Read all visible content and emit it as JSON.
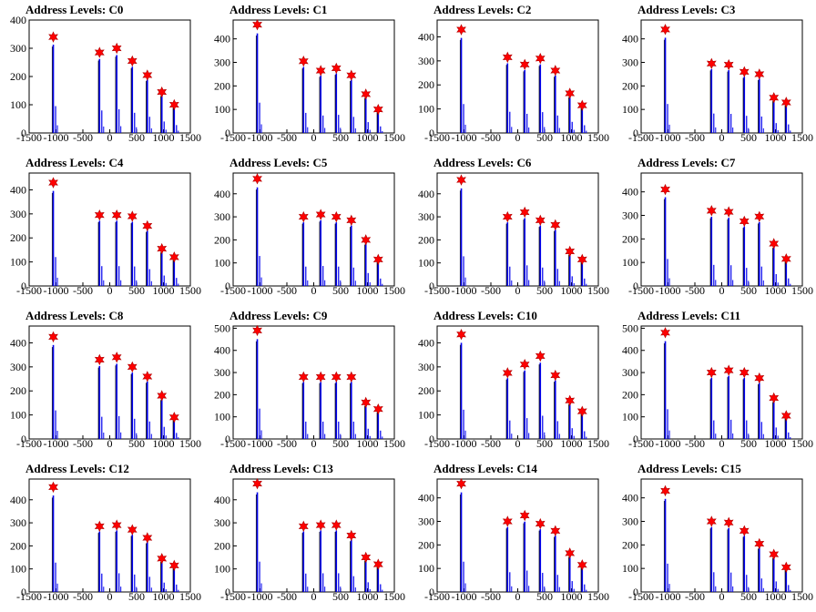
{
  "figure": {
    "series_colors": {
      "histogram": "#0000ee",
      "overlay": "#000000",
      "marker": "#ff0000"
    }
  },
  "chart_data": [
    {
      "type": "bar",
      "title": "Address Levels: C0",
      "xlabel": "",
      "ylabel": "",
      "xlim": [
        -1500,
        1500
      ],
      "ylim": [
        0,
        400
      ],
      "xticks": [
        "-1500",
        "-1000",
        "-500",
        "0",
        "500",
        "1000",
        "1500"
      ],
      "yticks": [
        "0",
        "100",
        "200",
        "300",
        "400"
      ],
      "peaks": [
        {
          "x": -1050,
          "y": 340
        },
        {
          "x": -190,
          "y": 285
        },
        {
          "x": 130,
          "y": 300
        },
        {
          "x": 420,
          "y": 255
        },
        {
          "x": 700,
          "y": 205
        },
        {
          "x": 970,
          "y": 145
        },
        {
          "x": 1200,
          "y": 100
        }
      ]
    },
    {
      "type": "bar",
      "title": "Address Levels: C1",
      "xlabel": "",
      "ylabel": "",
      "xlim": [
        -1500,
        1500
      ],
      "ylim": [
        0,
        480
      ],
      "xticks": [
        "-1500",
        "-1000",
        "-500",
        "0",
        "500",
        "1000",
        "1500"
      ],
      "yticks": [
        "0",
        "100",
        "200",
        "300",
        "400"
      ],
      "peaks": [
        {
          "x": -1050,
          "y": 460
        },
        {
          "x": -190,
          "y": 305
        },
        {
          "x": 130,
          "y": 265
        },
        {
          "x": 420,
          "y": 275
        },
        {
          "x": 700,
          "y": 245
        },
        {
          "x": 970,
          "y": 165
        },
        {
          "x": 1200,
          "y": 100
        }
      ]
    },
    {
      "type": "bar",
      "title": "Address Levels: C2",
      "xlabel": "",
      "ylabel": "",
      "xlim": [
        -1500,
        1500
      ],
      "ylim": [
        0,
        470
      ],
      "xticks": [
        "-1500",
        "-1000",
        "-500",
        "0",
        "500",
        "1000",
        "1500"
      ],
      "yticks": [
        "0",
        "100",
        "200",
        "300",
        "400"
      ],
      "peaks": [
        {
          "x": -1050,
          "y": 430
        },
        {
          "x": -190,
          "y": 315
        },
        {
          "x": 130,
          "y": 285
        },
        {
          "x": 420,
          "y": 310
        },
        {
          "x": 700,
          "y": 260
        },
        {
          "x": 970,
          "y": 165
        },
        {
          "x": 1200,
          "y": 115
        }
      ]
    },
    {
      "type": "bar",
      "title": "Address Levels: C3",
      "xlabel": "",
      "ylabel": "",
      "xlim": [
        -1500,
        1500
      ],
      "ylim": [
        0,
        480
      ],
      "xticks": [
        "-1500",
        "-1000",
        "-500",
        "0",
        "500",
        "1000",
        "1500"
      ],
      "yticks": [
        "0",
        "100",
        "200",
        "300",
        "400"
      ],
      "peaks": [
        {
          "x": -1050,
          "y": 440
        },
        {
          "x": -190,
          "y": 295
        },
        {
          "x": 130,
          "y": 290
        },
        {
          "x": 420,
          "y": 260
        },
        {
          "x": 700,
          "y": 250
        },
        {
          "x": 970,
          "y": 150
        },
        {
          "x": 1200,
          "y": 130
        }
      ]
    },
    {
      "type": "bar",
      "title": "Address Levels: C4",
      "xlabel": "",
      "ylabel": "",
      "xlim": [
        -1500,
        1500
      ],
      "ylim": [
        0,
        470
      ],
      "xticks": [
        "-1500",
        "-1000",
        "-500",
        "0",
        "500",
        "1000",
        "1500"
      ],
      "yticks": [
        "0",
        "100",
        "200",
        "300",
        "400"
      ],
      "peaks": [
        {
          "x": -1050,
          "y": 430
        },
        {
          "x": -190,
          "y": 295
        },
        {
          "x": 130,
          "y": 295
        },
        {
          "x": 420,
          "y": 290
        },
        {
          "x": 700,
          "y": 250
        },
        {
          "x": 970,
          "y": 155
        },
        {
          "x": 1200,
          "y": 120
        }
      ]
    },
    {
      "type": "bar",
      "title": "Address Levels: C5",
      "xlabel": "",
      "ylabel": "",
      "xlim": [
        -1500,
        1500
      ],
      "ylim": [
        0,
        490
      ],
      "xticks": [
        "-1500",
        "-1000",
        "-500",
        "0",
        "500",
        "1000",
        "1500"
      ],
      "yticks": [
        "0",
        "100",
        "200",
        "300",
        "400"
      ],
      "peaks": [
        {
          "x": -1050,
          "y": 465
        },
        {
          "x": -190,
          "y": 300
        },
        {
          "x": 130,
          "y": 310
        },
        {
          "x": 420,
          "y": 300
        },
        {
          "x": 700,
          "y": 285
        },
        {
          "x": 970,
          "y": 200
        },
        {
          "x": 1200,
          "y": 115
        }
      ]
    },
    {
      "type": "bar",
      "title": "Address Levels: C6",
      "xlabel": "",
      "ylabel": "",
      "xlim": [
        -1500,
        1500
      ],
      "ylim": [
        0,
        490
      ],
      "xticks": [
        "-1500",
        "-1000",
        "-500",
        "0",
        "500",
        "1000",
        "1500"
      ],
      "yticks": [
        "0",
        "100",
        "200",
        "300",
        "400"
      ],
      "peaks": [
        {
          "x": -1050,
          "y": 460
        },
        {
          "x": -190,
          "y": 300
        },
        {
          "x": 130,
          "y": 320
        },
        {
          "x": 420,
          "y": 285
        },
        {
          "x": 700,
          "y": 265
        },
        {
          "x": 970,
          "y": 150
        },
        {
          "x": 1200,
          "y": 115
        }
      ]
    },
    {
      "type": "bar",
      "title": "Address Levels: C7",
      "xlabel": "",
      "ylabel": "",
      "xlim": [
        -1500,
        1500
      ],
      "ylim": [
        0,
        480
      ],
      "xticks": [
        "-1500",
        "-1000",
        "-500",
        "0",
        "500",
        "1000",
        "1500"
      ],
      "yticks": [
        "0",
        "100",
        "200",
        "300",
        "400"
      ],
      "peaks": [
        {
          "x": -1050,
          "y": 410
        },
        {
          "x": -190,
          "y": 320
        },
        {
          "x": 130,
          "y": 315
        },
        {
          "x": 420,
          "y": 275
        },
        {
          "x": 700,
          "y": 295
        },
        {
          "x": 970,
          "y": 180
        },
        {
          "x": 1200,
          "y": 115
        }
      ]
    },
    {
      "type": "bar",
      "title": "Address Levels: C8",
      "xlabel": "",
      "ylabel": "",
      "xlim": [
        -1500,
        1500
      ],
      "ylim": [
        0,
        470
      ],
      "xticks": [
        "-1500",
        "-1000",
        "-500",
        "0",
        "500",
        "1000",
        "1500"
      ],
      "yticks": [
        "0",
        "100",
        "200",
        "300",
        "400"
      ],
      "peaks": [
        {
          "x": -1050,
          "y": 425
        },
        {
          "x": -190,
          "y": 330
        },
        {
          "x": 130,
          "y": 340
        },
        {
          "x": 420,
          "y": 300
        },
        {
          "x": 700,
          "y": 260
        },
        {
          "x": 970,
          "y": 180
        },
        {
          "x": 1200,
          "y": 90
        }
      ]
    },
    {
      "type": "bar",
      "title": "Address Levels: C9",
      "xlabel": "",
      "ylabel": "",
      "xlim": [
        -1500,
        1500
      ],
      "ylim": [
        0,
        510
      ],
      "xticks": [
        "-1500",
        "-1000",
        "-500",
        "0",
        "500",
        "1000",
        "1500"
      ],
      "yticks": [
        "0",
        "100",
        "200",
        "300",
        "400",
        "500"
      ],
      "peaks": [
        {
          "x": -1050,
          "y": 490
        },
        {
          "x": -190,
          "y": 280
        },
        {
          "x": 130,
          "y": 280
        },
        {
          "x": 420,
          "y": 280
        },
        {
          "x": 700,
          "y": 280
        },
        {
          "x": 970,
          "y": 165
        },
        {
          "x": 1200,
          "y": 135
        }
      ]
    },
    {
      "type": "bar",
      "title": "Address Levels: C10",
      "xlabel": "",
      "ylabel": "",
      "xlim": [
        -1500,
        1500
      ],
      "ylim": [
        0,
        470
      ],
      "xticks": [
        "-1500",
        "-1000",
        "-500",
        "0",
        "500",
        "1000",
        "1500"
      ],
      "yticks": [
        "0",
        "100",
        "200",
        "300",
        "400"
      ],
      "peaks": [
        {
          "x": -1050,
          "y": 435
        },
        {
          "x": -190,
          "y": 275
        },
        {
          "x": 130,
          "y": 310
        },
        {
          "x": 420,
          "y": 345
        },
        {
          "x": 700,
          "y": 265
        },
        {
          "x": 970,
          "y": 160
        },
        {
          "x": 1200,
          "y": 115
        }
      ]
    },
    {
      "type": "bar",
      "title": "Address Levels: C11",
      "xlabel": "",
      "ylabel": "",
      "xlim": [
        -1500,
        1500
      ],
      "ylim": [
        0,
        510
      ],
      "xticks": [
        "-1500",
        "-1000",
        "-500",
        "0",
        "500",
        "1000",
        "1500"
      ],
      "yticks": [
        "0",
        "100",
        "200",
        "300",
        "400",
        "500"
      ],
      "peaks": [
        {
          "x": -1050,
          "y": 480
        },
        {
          "x": -190,
          "y": 300
        },
        {
          "x": 130,
          "y": 310
        },
        {
          "x": 420,
          "y": 300
        },
        {
          "x": 700,
          "y": 275
        },
        {
          "x": 970,
          "y": 185
        },
        {
          "x": 1200,
          "y": 105
        }
      ]
    },
    {
      "type": "bar",
      "title": "Address Levels: C12",
      "xlabel": "",
      "ylabel": "",
      "xlim": [
        -1500,
        1500
      ],
      "ylim": [
        0,
        490
      ],
      "xticks": [
        "-1500",
        "-1000",
        "-500",
        "0",
        "500",
        "1000",
        "1500"
      ],
      "yticks": [
        "0",
        "100",
        "200",
        "300",
        "400"
      ],
      "peaks": [
        {
          "x": -1050,
          "y": 455
        },
        {
          "x": -190,
          "y": 285
        },
        {
          "x": 130,
          "y": 290
        },
        {
          "x": 420,
          "y": 270
        },
        {
          "x": 700,
          "y": 235
        },
        {
          "x": 970,
          "y": 145
        },
        {
          "x": 1200,
          "y": 115
        }
      ]
    },
    {
      "type": "bar",
      "title": "Address Levels: C13",
      "xlabel": "",
      "ylabel": "",
      "xlim": [
        -1500,
        1500
      ],
      "ylim": [
        0,
        490
      ],
      "xticks": [
        "-1500",
        "-1000",
        "-500",
        "0",
        "500",
        "1000",
        "1500"
      ],
      "yticks": [
        "0",
        "100",
        "200",
        "300",
        "400"
      ],
      "peaks": [
        {
          "x": -1050,
          "y": 470
        },
        {
          "x": -190,
          "y": 285
        },
        {
          "x": 130,
          "y": 290
        },
        {
          "x": 420,
          "y": 290
        },
        {
          "x": 700,
          "y": 245
        },
        {
          "x": 970,
          "y": 150
        },
        {
          "x": 1200,
          "y": 120
        }
      ]
    },
    {
      "type": "bar",
      "title": "Address Levels: C14",
      "xlabel": "",
      "ylabel": "",
      "xlim": [
        -1500,
        1500
      ],
      "ylim": [
        0,
        480
      ],
      "xticks": [
        "-1500",
        "-1000",
        "-500",
        "0",
        "500",
        "1000",
        "1500"
      ],
      "yticks": [
        "0",
        "100",
        "200",
        "300",
        "400"
      ],
      "peaks": [
        {
          "x": -1050,
          "y": 460
        },
        {
          "x": -190,
          "y": 300
        },
        {
          "x": 130,
          "y": 325
        },
        {
          "x": 420,
          "y": 290
        },
        {
          "x": 700,
          "y": 260
        },
        {
          "x": 970,
          "y": 165
        },
        {
          "x": 1200,
          "y": 115
        }
      ]
    },
    {
      "type": "bar",
      "title": "Address Levels: C15",
      "xlabel": "",
      "ylabel": "",
      "xlim": [
        -1500,
        1500
      ],
      "ylim": [
        0,
        480
      ],
      "xticks": [
        "-1500",
        "-1000",
        "-500",
        "0",
        "500",
        "1000",
        "1500"
      ],
      "yticks": [
        "0",
        "100",
        "200",
        "300",
        "400"
      ],
      "peaks": [
        {
          "x": -1050,
          "y": 430
        },
        {
          "x": -190,
          "y": 300
        },
        {
          "x": 130,
          "y": 295
        },
        {
          "x": 420,
          "y": 260
        },
        {
          "x": 700,
          "y": 205
        },
        {
          "x": 970,
          "y": 160
        },
        {
          "x": 1200,
          "y": 105
        }
      ]
    }
  ]
}
